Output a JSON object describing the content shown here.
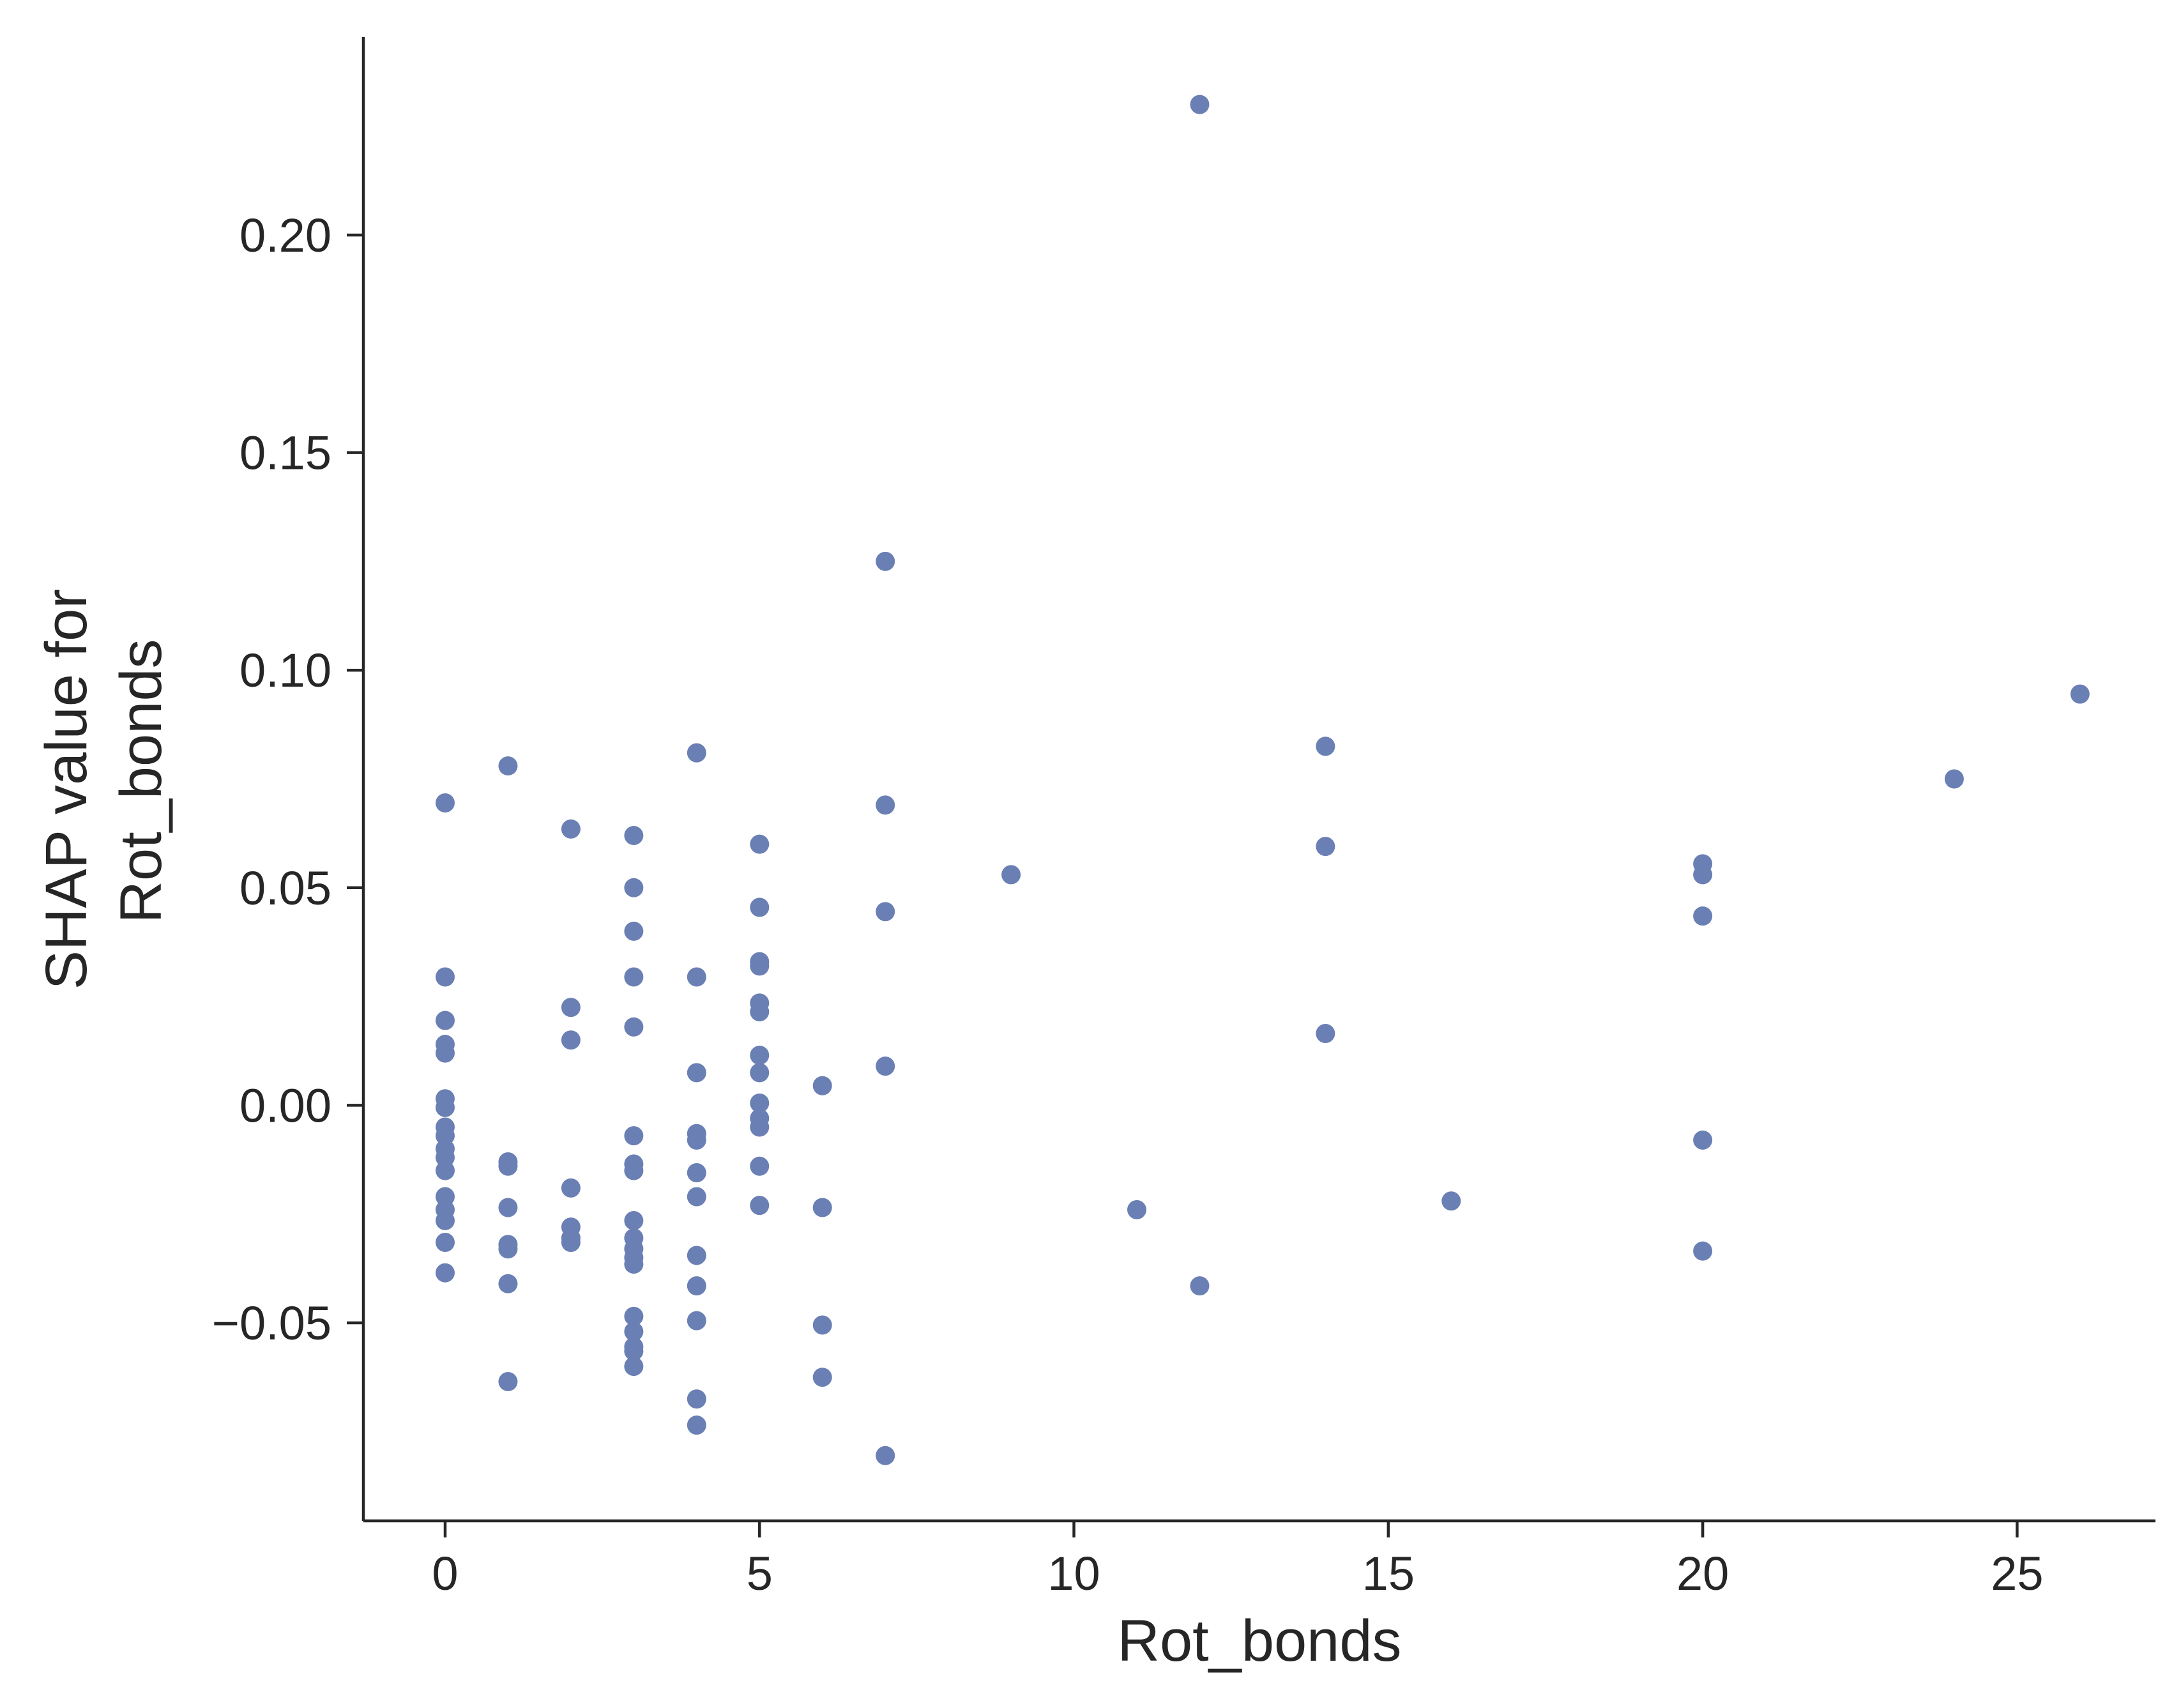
{
  "chart_data": {
    "type": "scatter",
    "xlabel": "Rot_bonds",
    "ylabel_lines": [
      "SHAP value for",
      "Rot_bonds"
    ],
    "xlim": [
      -1.3,
      27.2
    ],
    "ylim": [
      -0.0955,
      0.2455
    ],
    "x_ticks": [
      0,
      5,
      10,
      15,
      20,
      25
    ],
    "x_tick_labels": [
      "0",
      "5",
      "10",
      "15",
      "20",
      "25"
    ],
    "y_ticks": [
      -0.05,
      0.0,
      0.05,
      0.1,
      0.15,
      0.2
    ],
    "y_tick_labels": [
      "−0.05",
      "0.00",
      "0.05",
      "0.10",
      "0.15",
      "0.20"
    ],
    "grid": false,
    "point_color": "#6a7fb3",
    "axis_color": "#262626",
    "points": [
      [
        0,
        0.0695
      ],
      [
        0,
        0.0295
      ],
      [
        0,
        0.0195
      ],
      [
        0,
        0.014
      ],
      [
        0,
        0.012
      ],
      [
        0,
        0.0015
      ],
      [
        0,
        -0.0005
      ],
      [
        0,
        -0.005
      ],
      [
        0,
        -0.007
      ],
      [
        0,
        -0.01
      ],
      [
        0,
        -0.012
      ],
      [
        0,
        -0.015
      ],
      [
        0,
        -0.021
      ],
      [
        0,
        -0.024
      ],
      [
        0,
        -0.0265
      ],
      [
        0,
        -0.0315
      ],
      [
        0,
        -0.0385
      ],
      [
        1,
        0.078
      ],
      [
        1,
        -0.013
      ],
      [
        1,
        -0.014
      ],
      [
        1,
        -0.0235
      ],
      [
        1,
        -0.032
      ],
      [
        1,
        -0.033
      ],
      [
        1,
        -0.041
      ],
      [
        1,
        -0.0635
      ],
      [
        2,
        0.0635
      ],
      [
        2,
        0.0225
      ],
      [
        2,
        0.015
      ],
      [
        2,
        -0.019
      ],
      [
        2,
        -0.028
      ],
      [
        2,
        -0.0305
      ],
      [
        2,
        -0.0315
      ],
      [
        3,
        0.062
      ],
      [
        3,
        0.05
      ],
      [
        3,
        0.04
      ],
      [
        3,
        0.0295
      ],
      [
        3,
        0.018
      ],
      [
        3,
        -0.007
      ],
      [
        3,
        -0.0135
      ],
      [
        3,
        -0.015
      ],
      [
        3,
        -0.0265
      ],
      [
        3,
        -0.0305
      ],
      [
        3,
        -0.033
      ],
      [
        3,
        -0.035
      ],
      [
        3,
        -0.0365
      ],
      [
        3,
        -0.0485
      ],
      [
        3,
        -0.052
      ],
      [
        3,
        -0.0555
      ],
      [
        3,
        -0.0565
      ],
      [
        3,
        -0.06
      ],
      [
        4,
        0.081
      ],
      [
        4,
        0.0295
      ],
      [
        4,
        0.0075
      ],
      [
        4,
        -0.0065
      ],
      [
        4,
        -0.008
      ],
      [
        4,
        -0.0155
      ],
      [
        4,
        -0.021
      ],
      [
        4,
        -0.0345
      ],
      [
        4,
        -0.0415
      ],
      [
        4,
        -0.0495
      ],
      [
        4,
        -0.0675
      ],
      [
        4,
        -0.0735
      ],
      [
        5,
        0.06
      ],
      [
        5,
        0.0455
      ],
      [
        5,
        0.033
      ],
      [
        5,
        0.032
      ],
      [
        5,
        0.0235
      ],
      [
        5,
        0.0215
      ],
      [
        5,
        0.0115
      ],
      [
        5,
        0.0075
      ],
      [
        5,
        0.0005
      ],
      [
        5,
        -0.003
      ],
      [
        5,
        -0.005
      ],
      [
        5,
        -0.014
      ],
      [
        5,
        -0.023
      ],
      [
        6,
        0.0045
      ],
      [
        6,
        -0.0235
      ],
      [
        6,
        -0.0505
      ],
      [
        6,
        -0.0625
      ],
      [
        7,
        0.125
      ],
      [
        7,
        0.069
      ],
      [
        7,
        0.0445
      ],
      [
        7,
        0.009
      ],
      [
        7,
        -0.0805
      ],
      [
        9,
        0.053
      ],
      [
        11,
        -0.024
      ],
      [
        12,
        0.23
      ],
      [
        12,
        -0.0415
      ],
      [
        14,
        0.0825
      ],
      [
        14,
        0.0595
      ],
      [
        14,
        0.0165
      ],
      [
        16,
        -0.022
      ],
      [
        20,
        0.0555
      ],
      [
        20,
        0.053
      ],
      [
        20,
        0.0435
      ],
      [
        20,
        -0.008
      ],
      [
        20,
        -0.0335
      ],
      [
        24,
        0.075
      ],
      [
        26,
        0.0945
      ]
    ]
  }
}
